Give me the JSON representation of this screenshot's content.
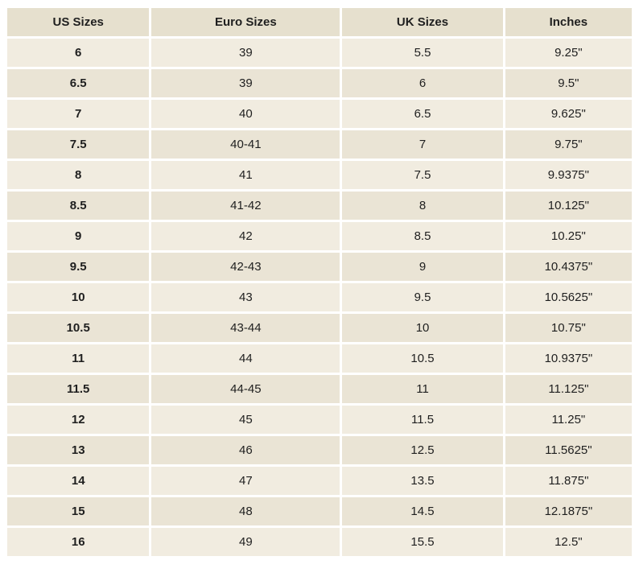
{
  "chart_data": {
    "type": "table",
    "columns": [
      "US Sizes",
      "Euro Sizes",
      "UK Sizes",
      "Inches"
    ],
    "rows": [
      [
        "6",
        "39",
        "5.5",
        "9.25\""
      ],
      [
        "6.5",
        "39",
        "6",
        "9.5\""
      ],
      [
        "7",
        "40",
        "6.5",
        "9.625\""
      ],
      [
        "7.5",
        "40-41",
        "7",
        "9.75\""
      ],
      [
        "8",
        "41",
        "7.5",
        "9.9375\""
      ],
      [
        "8.5",
        "41-42",
        "8",
        "10.125\""
      ],
      [
        "9",
        "42",
        "8.5",
        "10.25\""
      ],
      [
        "9.5",
        "42-43",
        "9",
        "10.4375\""
      ],
      [
        "10",
        "43",
        "9.5",
        "10.5625\""
      ],
      [
        "10.5",
        "43-44",
        "10",
        "10.75\""
      ],
      [
        "11",
        "44",
        "10.5",
        "10.9375\""
      ],
      [
        "11.5",
        "44-45",
        "11",
        "11.125\""
      ],
      [
        "12",
        "45",
        "11.5",
        "11.25\""
      ],
      [
        "13",
        "46",
        "12.5",
        "11.5625\""
      ],
      [
        "14",
        "47",
        "13.5",
        "11.875\""
      ],
      [
        "15",
        "48",
        "14.5",
        "12.1875\""
      ],
      [
        "16",
        "49",
        "15.5",
        "12.5\""
      ]
    ]
  },
  "colors": {
    "header_bg": "#e6e0ce",
    "row_bg": "#f1ece0",
    "row_bg_alt": "#eae4d5",
    "gap": "#ffffff",
    "text": "#1f1f1f"
  }
}
